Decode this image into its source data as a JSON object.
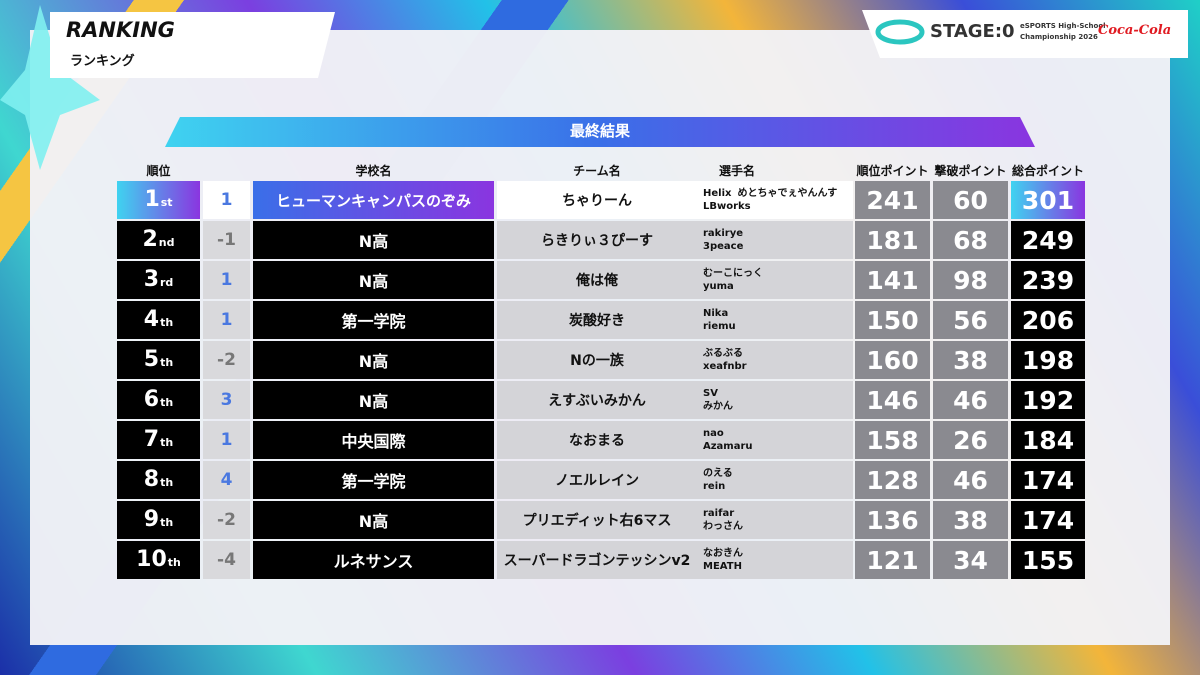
{
  "header": {
    "title": "RANKING",
    "subtitle": "ランキング"
  },
  "logo": {
    "stage": "STAGE:0",
    "event_line1": "eSPORTS High-School",
    "event_line2": "Championship 2026",
    "sponsor": "Coca-Cola"
  },
  "table": {
    "title": "最終結果",
    "columns": {
      "rank": "順位",
      "school": "学校名",
      "team": "チーム名",
      "players": "選手名",
      "rank_points": "順位ポイント",
      "kill_points": "撃破ポイント",
      "total_points": "総合ポイント"
    },
    "rows": [
      {
        "rank": "1",
        "suffix": "st",
        "change": 1,
        "school": "ヒューマンキャンパスのぞみ",
        "team": "ちゃりーん",
        "players": [
          "Helix",
          "めとちゃでぇやんんす",
          "LBworks"
        ],
        "rank_points": 241,
        "kill_points": 60,
        "total_points": 301
      },
      {
        "rank": "2",
        "suffix": "nd",
        "change": -1,
        "school": "N高",
        "team": "らきりぃ３ぴーす",
        "players": [
          "rakirye",
          "3peace"
        ],
        "rank_points": 181,
        "kill_points": 68,
        "total_points": 249
      },
      {
        "rank": "3",
        "suffix": "rd",
        "change": 1,
        "school": "N高",
        "team": "俺は俺",
        "players": [
          "むーこにっく",
          "yuma"
        ],
        "rank_points": 141,
        "kill_points": 98,
        "total_points": 239
      },
      {
        "rank": "4",
        "suffix": "th",
        "change": 1,
        "school": "第一学院",
        "team": "炭酸好き",
        "players": [
          "Nika",
          "riemu"
        ],
        "rank_points": 150,
        "kill_points": 56,
        "total_points": 206
      },
      {
        "rank": "5",
        "suffix": "th",
        "change": -2,
        "school": "N高",
        "team": "Nの一族",
        "players": [
          "ぶるぶる",
          "xeafnbr"
        ],
        "rank_points": 160,
        "kill_points": 38,
        "total_points": 198
      },
      {
        "rank": "6",
        "suffix": "th",
        "change": 3,
        "school": "N高",
        "team": "えすぶいみかん",
        "players": [
          "SV",
          "みかん"
        ],
        "rank_points": 146,
        "kill_points": 46,
        "total_points": 192
      },
      {
        "rank": "7",
        "suffix": "th",
        "change": 1,
        "school": "中央国際",
        "team": "なおまる",
        "players": [
          "nao",
          "Azamaru"
        ],
        "rank_points": 158,
        "kill_points": 26,
        "total_points": 184
      },
      {
        "rank": "8",
        "suffix": "th",
        "change": 4,
        "school": "第一学院",
        "team": "ノエルレイン",
        "players": [
          "のえる",
          "rein"
        ],
        "rank_points": 128,
        "kill_points": 46,
        "total_points": 174
      },
      {
        "rank": "9",
        "suffix": "th",
        "change": -2,
        "school": "N高",
        "team": "プリエディット右6マス",
        "players": [
          "raifar",
          "わっさん"
        ],
        "rank_points": 136,
        "kill_points": 38,
        "total_points": 174
      },
      {
        "rank": "10",
        "suffix": "th",
        "change": -4,
        "school": "ルネサンス",
        "team": "スーパードラゴンテッシンv2",
        "players": [
          "なおきん",
          "MEATH"
        ],
        "rank_points": 121,
        "kill_points": 34,
        "total_points": 155
      }
    ]
  }
}
